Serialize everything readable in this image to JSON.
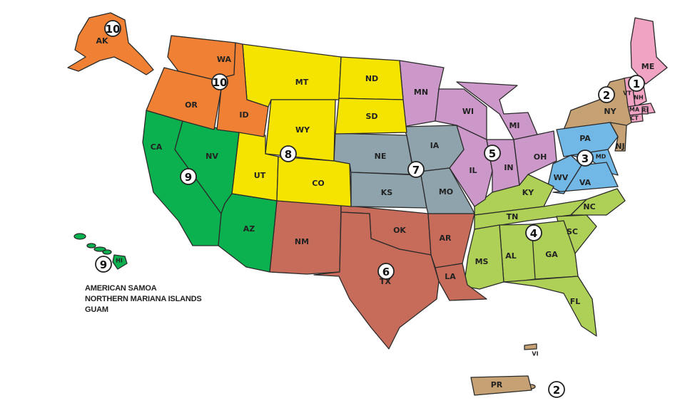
{
  "region_colors": {
    "1": "#f0a3c3",
    "2": "#c6a173",
    "3": "#72b8e6",
    "4": "#afd056",
    "5": "#cc97c9",
    "6": "#c76c5b",
    "7": "#8fa3ad",
    "8": "#f5e300",
    "9": "#0cb14f",
    "10": "#f08134"
  },
  "states": [
    {
      "abbr": "ME",
      "region": "1"
    },
    {
      "abbr": "NH",
      "region": "1"
    },
    {
      "abbr": "VT",
      "region": "1"
    },
    {
      "abbr": "MA",
      "region": "1"
    },
    {
      "abbr": "CT",
      "region": "1"
    },
    {
      "abbr": "RI",
      "region": "1"
    },
    {
      "abbr": "NY",
      "region": "2"
    },
    {
      "abbr": "NJ",
      "region": "2"
    },
    {
      "abbr": "PR",
      "region": "2"
    },
    {
      "abbr": "VI",
      "region": "2"
    },
    {
      "abbr": "PA",
      "region": "3"
    },
    {
      "abbr": "MD",
      "region": "3"
    },
    {
      "abbr": "WV",
      "region": "3"
    },
    {
      "abbr": "VA",
      "region": "3"
    },
    {
      "abbr": "KY",
      "region": "4"
    },
    {
      "abbr": "TN",
      "region": "4"
    },
    {
      "abbr": "NC",
      "region": "4"
    },
    {
      "abbr": "SC",
      "region": "4"
    },
    {
      "abbr": "GA",
      "region": "4"
    },
    {
      "abbr": "AL",
      "region": "4"
    },
    {
      "abbr": "MS",
      "region": "4"
    },
    {
      "abbr": "FL",
      "region": "4"
    },
    {
      "abbr": "MN",
      "region": "5"
    },
    {
      "abbr": "WI",
      "region": "5"
    },
    {
      "abbr": "MI",
      "region": "5"
    },
    {
      "abbr": "IL",
      "region": "5"
    },
    {
      "abbr": "IN",
      "region": "5"
    },
    {
      "abbr": "OH",
      "region": "5"
    },
    {
      "abbr": "NM",
      "region": "6"
    },
    {
      "abbr": "OK",
      "region": "6"
    },
    {
      "abbr": "TX",
      "region": "6"
    },
    {
      "abbr": "AR",
      "region": "6"
    },
    {
      "abbr": "LA",
      "region": "6"
    },
    {
      "abbr": "NE",
      "region": "7"
    },
    {
      "abbr": "IA",
      "region": "7"
    },
    {
      "abbr": "KS",
      "region": "7"
    },
    {
      "abbr": "MO",
      "region": "7"
    },
    {
      "abbr": "MT",
      "region": "8"
    },
    {
      "abbr": "ND",
      "region": "8"
    },
    {
      "abbr": "SD",
      "region": "8"
    },
    {
      "abbr": "WY",
      "region": "8"
    },
    {
      "abbr": "UT",
      "region": "8"
    },
    {
      "abbr": "CO",
      "region": "8"
    },
    {
      "abbr": "CA",
      "region": "9"
    },
    {
      "abbr": "NV",
      "region": "9"
    },
    {
      "abbr": "AZ",
      "region": "9"
    },
    {
      "abbr": "HI",
      "region": "9"
    },
    {
      "abbr": "WA",
      "region": "10"
    },
    {
      "abbr": "OR",
      "region": "10"
    },
    {
      "abbr": "ID",
      "region": "10"
    },
    {
      "abbr": "AK",
      "region": "10"
    }
  ],
  "region_badges": [
    "1",
    "2",
    "3",
    "4",
    "5",
    "6",
    "7",
    "8",
    "9",
    "10",
    "10",
    "9",
    "2"
  ],
  "territories": {
    "line1": "AMERICAN SAMOA",
    "line2": "NORTHERN MARIANA ISLANDS",
    "line3": "GUAM"
  }
}
